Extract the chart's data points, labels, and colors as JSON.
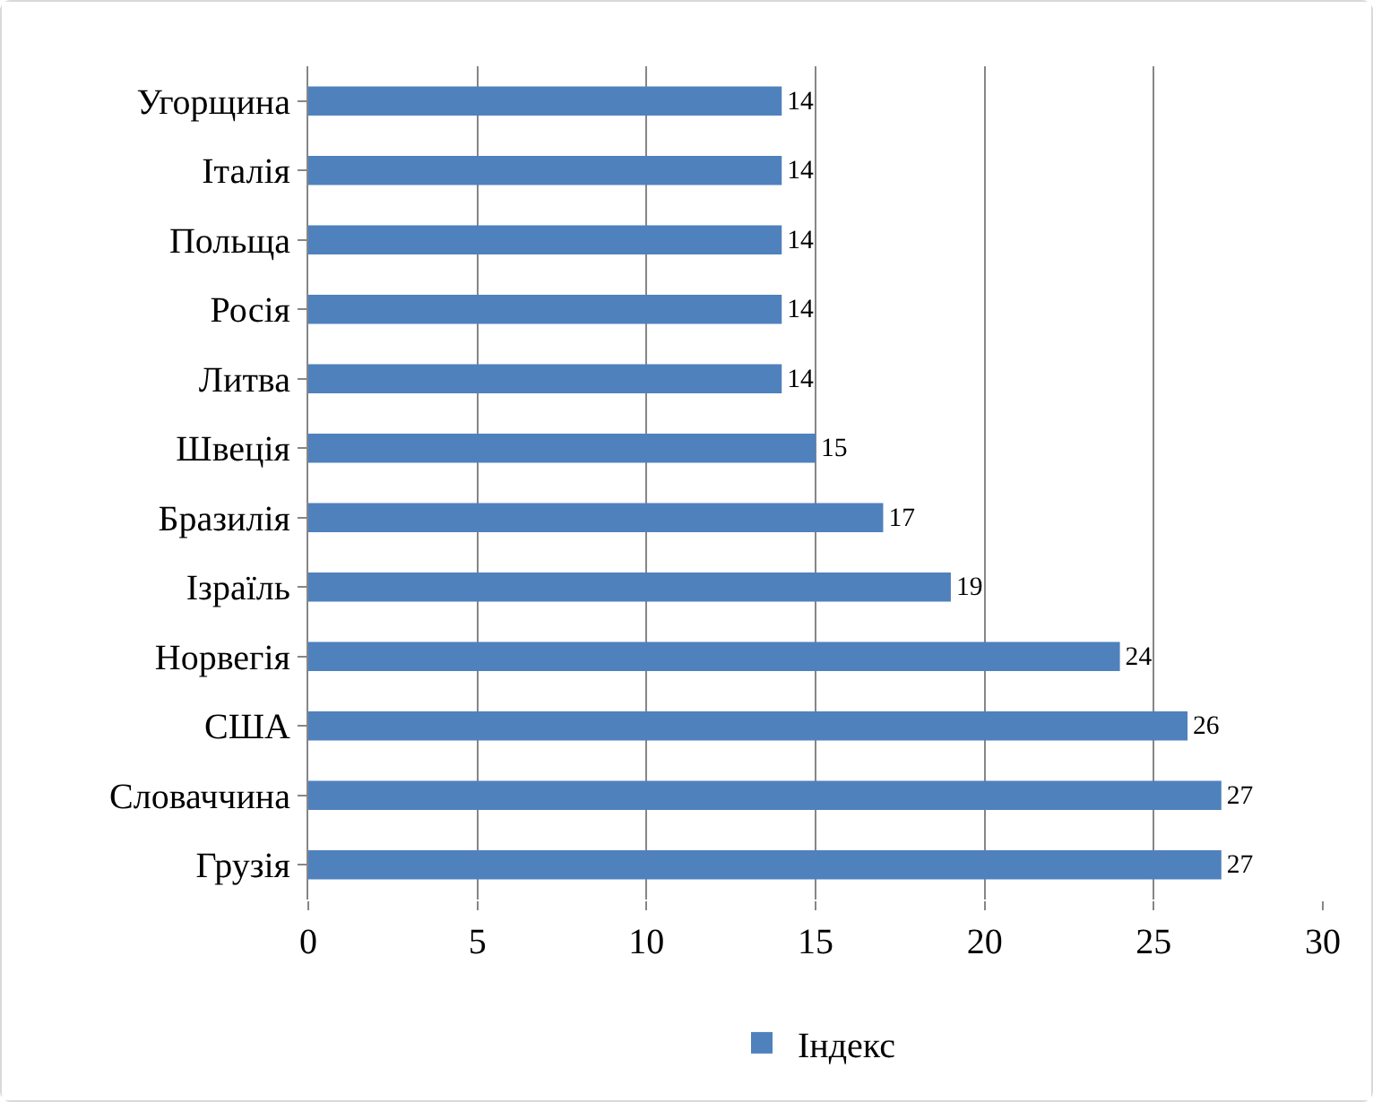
{
  "chart_data": {
    "type": "bar",
    "orientation": "horizontal",
    "categories": [
      "Угорщина",
      "Італія",
      "Польща",
      "Росія",
      "Литва",
      "Швеція",
      "Бразилія",
      "Ізраїль",
      "Норвегія",
      "США",
      "Словаччина",
      "Грузія"
    ],
    "series": [
      {
        "name": "Індекс",
        "color": "#4f81bd",
        "values": [
          14,
          14,
          14,
          14,
          14,
          15,
          17,
          19,
          24,
          26,
          27,
          27
        ]
      }
    ],
    "xlim": [
      0,
      30
    ],
    "xticks": [
      0,
      5,
      10,
      15,
      20,
      25,
      30
    ],
    "grid": "x",
    "legend": "bottom",
    "data_labels": true
  }
}
